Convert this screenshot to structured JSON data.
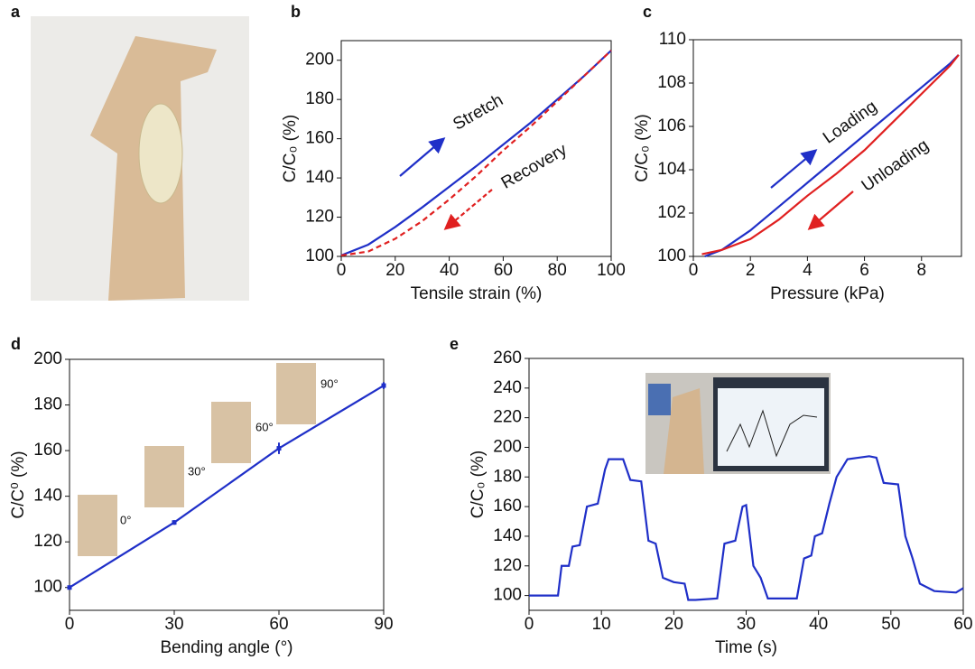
{
  "image_panel": {
    "label": "a"
  },
  "chart_data": [
    {
      "type": "line",
      "label": "b",
      "xlabel": "Tensile strain (%)",
      "ylabel": "C/C₀ (%)",
      "xlim": [
        0,
        100
      ],
      "ylim": [
        100,
        210
      ],
      "xticks": [
        0,
        20,
        40,
        60,
        80,
        100
      ],
      "yticks": [
        100,
        120,
        140,
        160,
        180,
        200
      ],
      "series": [
        {
          "name": "Stretch",
          "color": "#1f2fc8",
          "dash": false,
          "x": [
            0,
            10,
            20,
            30,
            40,
            50,
            60,
            70,
            80,
            90,
            100
          ],
          "values": [
            100.5,
            106,
            115,
            125,
            135.5,
            146,
            157,
            168,
            180,
            192,
            205
          ]
        },
        {
          "name": "Recovery",
          "color": "#e02020",
          "dash": true,
          "x": [
            0,
            10,
            20,
            30,
            40,
            50,
            60,
            70,
            80,
            90,
            100
          ],
          "values": [
            100.5,
            102.5,
            109,
            118,
            129,
            141,
            154,
            166,
            179,
            192,
            205
          ]
        }
      ]
    },
    {
      "type": "line",
      "label": "c",
      "xlabel": "Pressure (kPa)",
      "ylabel": "C/C₀ (%)",
      "xlim": [
        0,
        9.4
      ],
      "ylim": [
        100,
        110
      ],
      "xticks": [
        0,
        2,
        4,
        6,
        8
      ],
      "yticks": [
        100,
        102,
        104,
        106,
        108,
        110
      ],
      "series": [
        {
          "name": "Loading",
          "color": "#1f2fc8",
          "dash": false,
          "x": [
            0.4,
            1,
            2,
            3,
            4,
            5,
            6,
            7,
            8,
            9,
            9.3
          ],
          "values": [
            100,
            100.3,
            101.2,
            102.3,
            103.4,
            104.5,
            105.6,
            106.7,
            107.8,
            108.9,
            109.3
          ]
        },
        {
          "name": "Unloading",
          "color": "#e02020",
          "dash": false,
          "x": [
            0.3,
            1,
            2,
            3,
            4,
            5,
            6,
            7,
            8,
            9,
            9.3
          ],
          "values": [
            100.1,
            100.3,
            100.8,
            101.7,
            102.8,
            103.8,
            104.9,
            106.2,
            107.5,
            108.8,
            109.3
          ]
        }
      ]
    },
    {
      "type": "line",
      "label": "d",
      "xlabel": "Bending angle (°)",
      "ylabel": "C/C⁰ (%)",
      "xlim": [
        0,
        90
      ],
      "ylim": [
        90,
        200
      ],
      "xticks": [
        0,
        30,
        60,
        90
      ],
      "yticks": [
        100,
        120,
        140,
        160,
        180,
        200
      ],
      "annotations": [
        "0°",
        "30°",
        "60°",
        "90°"
      ],
      "series": [
        {
          "color": "#1f2fc8",
          "dash": false,
          "x": [
            0,
            30,
            60,
            90
          ],
          "values": [
            100,
            128.5,
            161,
            188.5
          ],
          "errors": [
            0.5,
            1,
            2.5,
            1.5
          ]
        }
      ]
    },
    {
      "type": "line",
      "label": "e",
      "xlabel": "Time (s)",
      "ylabel": "C/C₀ (%)",
      "xlim": [
        0,
        60
      ],
      "ylim": [
        90,
        260
      ],
      "xticks": [
        0,
        10,
        20,
        30,
        40,
        50,
        60
      ],
      "yticks": [
        100,
        120,
        140,
        160,
        180,
        200,
        220,
        240,
        260
      ],
      "series": [
        {
          "color": "#1f2fc8",
          "dash": false,
          "x": [
            0,
            4,
            4.5,
            5.5,
            6,
            7,
            8,
            9.5,
            10.5,
            11,
            13,
            14,
            15.5,
            16.5,
            17.5,
            18.5,
            20,
            21.5,
            22,
            23,
            26,
            27,
            28.5,
            29.5,
            30,
            31,
            32,
            33,
            34,
            37,
            38,
            39,
            39.5,
            40.5,
            41.5,
            42.5,
            44,
            47,
            48,
            49,
            51,
            52,
            53,
            54,
            56,
            59,
            60
          ],
          "values": [
            100,
            100,
            120,
            120,
            133,
            134,
            160,
            162,
            185,
            192,
            192,
            178,
            177,
            137,
            135,
            112,
            109,
            108,
            97,
            97,
            98,
            135,
            137,
            160,
            161,
            120,
            112,
            98,
            98,
            98,
            125,
            127,
            140,
            142,
            162,
            180,
            192,
            194,
            193,
            176,
            175,
            140,
            125,
            108,
            103,
            102,
            105
          ]
        }
      ]
    }
  ]
}
